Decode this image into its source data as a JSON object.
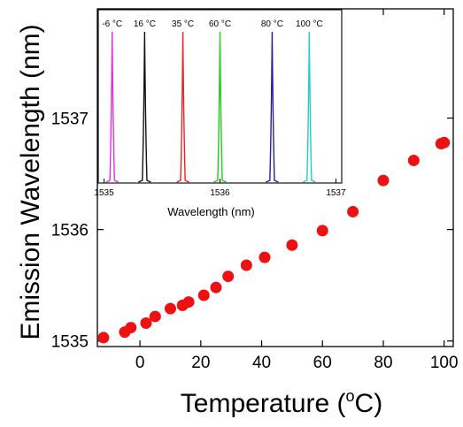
{
  "chart_data": [
    {
      "type": "scatter",
      "xlabel": "Temperature (",
      "xlabel_unit_sup": "o",
      "xlabel_unit": "C)",
      "ylabel": "Emission Wavelength (nm)",
      "xlim": [
        -14,
        103
      ],
      "ylim": [
        1534.95,
        1537.98
      ],
      "xticks": [
        0,
        20,
        40,
        60,
        80,
        100
      ],
      "yticks": [
        1535,
        1536,
        1537
      ],
      "grid": false,
      "marker_color": "#ee1111",
      "series": [
        {
          "x": [
            -12,
            -5,
            -3,
            2,
            5,
            10,
            14,
            16,
            21,
            25,
            29,
            35,
            41,
            50,
            60,
            70,
            80,
            90,
            99,
            100
          ],
          "y": [
            1535.03,
            1535.08,
            1535.12,
            1535.16,
            1535.22,
            1535.29,
            1535.32,
            1535.35,
            1535.41,
            1535.48,
            1535.58,
            1535.68,
            1535.75,
            1535.86,
            1535.99,
            1536.16,
            1536.44,
            1536.62,
            1536.77,
            1536.78
          ]
        }
      ]
    },
    {
      "type": "line",
      "role": "inset",
      "xlabel": "Wavelength (nm)",
      "ylabel": "",
      "xlim": [
        1534.95,
        1537.05
      ],
      "xticks": [
        1535,
        1536,
        1537
      ],
      "grid": false,
      "series": [
        {
          "name": "-6 °C",
          "peak": 1535.07,
          "color": "#dd33dd"
        },
        {
          "name": "16 °C",
          "peak": 1535.35,
          "color": "#111111"
        },
        {
          "name": "35 °C",
          "peak": 1535.68,
          "color": "#ee2222"
        },
        {
          "name": "60 °C",
          "peak": 1536.0,
          "color": "#22cc22"
        },
        {
          "name": "80 °C",
          "peak": 1536.45,
          "color": "#222299"
        },
        {
          "name": "100 °C",
          "peak": 1536.77,
          "color": "#22cccc"
        }
      ]
    }
  ]
}
